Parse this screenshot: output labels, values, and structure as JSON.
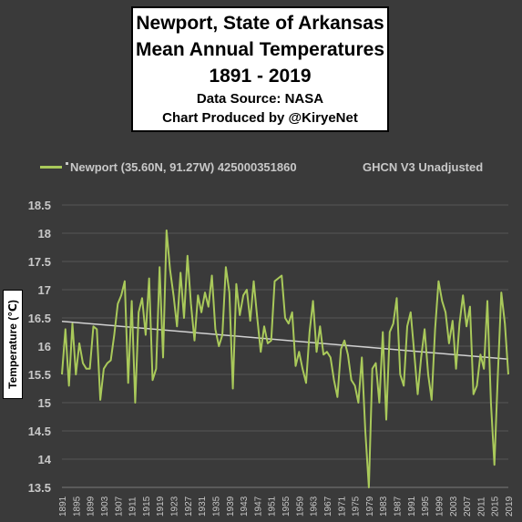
{
  "title": {
    "line1": "Newport, State of Arkansas",
    "line2": "Mean Annual Temperatures",
    "line3": "1891 - 2019",
    "line4": "Data Source: NASA",
    "line5": "Chart Produced by @KiryeNet"
  },
  "legend": {
    "series_label": "Newport (35.60N, 91.27W) 425000351860",
    "note": "GHCN V3 Unadjusted"
  },
  "colors": {
    "background": "#3a3a3a",
    "series": "#a9c95a",
    "trend": "#d2d2d2",
    "grid": "#555555",
    "text": "#c8c8c8"
  },
  "chart_data": {
    "type": "line",
    "xlabel": "",
    "ylabel": "Temperature (℃)",
    "ylim": [
      13.5,
      18.5
    ],
    "y_ticks": [
      "13.5",
      "14",
      "14.5",
      "15",
      "15.5",
      "16",
      "16.5",
      "17",
      "17.5",
      "18",
      "18.5"
    ],
    "x_ticks": [
      "1891",
      "1895",
      "1899",
      "1903",
      "1907",
      "1911",
      "1915",
      "1919",
      "1923",
      "1927",
      "1931",
      "1935",
      "1939",
      "1943",
      "1947",
      "1951",
      "1955",
      "1959",
      "1963",
      "1967",
      "1971",
      "1975",
      "1979",
      "1983",
      "1987",
      "1991",
      "1995",
      "1999",
      "2003",
      "2007",
      "2011",
      "2015",
      "2019"
    ],
    "grid": "horizontal",
    "x": [
      1891,
      1892,
      1893,
      1894,
      1895,
      1896,
      1897,
      1898,
      1899,
      1900,
      1901,
      1902,
      1903,
      1904,
      1905,
      1906,
      1907,
      1908,
      1909,
      1910,
      1911,
      1912,
      1913,
      1914,
      1915,
      1916,
      1917,
      1918,
      1919,
      1920,
      1921,
      1922,
      1923,
      1924,
      1925,
      1926,
      1927,
      1928,
      1929,
      1930,
      1931,
      1932,
      1933,
      1934,
      1935,
      1936,
      1937,
      1938,
      1939,
      1940,
      1941,
      1942,
      1943,
      1944,
      1945,
      1946,
      1947,
      1948,
      1949,
      1950,
      1951,
      1952,
      1953,
      1954,
      1955,
      1956,
      1957,
      1958,
      1959,
      1960,
      1961,
      1962,
      1963,
      1964,
      1965,
      1966,
      1967,
      1968,
      1969,
      1970,
      1971,
      1972,
      1973,
      1974,
      1975,
      1976,
      1977,
      1978,
      1979,
      1980,
      1981,
      1982,
      1983,
      1984,
      1985,
      1986,
      1987,
      1988,
      1989,
      1990,
      1991,
      1992,
      1993,
      1994,
      1995,
      1996,
      1997,
      1998,
      1999,
      2000,
      2001,
      2002,
      2003,
      2004,
      2005,
      2006,
      2007,
      2008,
      2009,
      2010,
      2011,
      2012,
      2013,
      2014,
      2015,
      2016,
      2017,
      2018,
      2019
    ],
    "series": [
      {
        "name": "Newport (35.60N, 91.27W) 425000351860",
        "values": [
          15.5,
          16.3,
          15.3,
          16.4,
          15.5,
          16.05,
          15.7,
          15.6,
          15.6,
          16.35,
          16.3,
          15.05,
          15.6,
          15.7,
          15.75,
          16.2,
          16.75,
          16.9,
          17.15,
          15.35,
          16.8,
          15.0,
          16.6,
          16.85,
          16.2,
          17.2,
          15.4,
          15.6,
          17.4,
          15.8,
          18.05,
          17.35,
          16.9,
          16.35,
          17.3,
          16.5,
          17.6,
          16.75,
          16.1,
          16.9,
          16.6,
          16.95,
          16.7,
          17.25,
          16.3,
          16.0,
          16.2,
          17.4,
          16.95,
          15.25,
          17.1,
          16.55,
          16.9,
          17.0,
          16.45,
          17.15,
          16.5,
          15.9,
          16.35,
          16.05,
          16.1,
          17.15,
          17.2,
          17.25,
          16.5,
          16.4,
          16.6,
          15.65,
          15.9,
          15.6,
          15.35,
          16.25,
          16.8,
          15.9,
          16.35,
          15.85,
          15.9,
          15.8,
          15.4,
          15.1,
          15.95,
          16.1,
          15.85,
          15.4,
          15.3,
          15.0,
          15.8,
          14.5,
          13.5,
          15.6,
          15.7,
          15.0,
          16.25,
          14.7,
          16.25,
          16.4,
          16.85,
          15.5,
          15.3,
          16.35,
          16.6,
          15.9,
          15.15,
          15.8,
          16.3,
          15.5,
          15.05,
          16.3,
          17.15,
          16.8,
          16.6,
          16.05,
          16.45,
          15.6,
          16.4,
          16.9,
          16.35,
          16.7,
          15.15,
          15.3,
          15.85,
          15.6,
          16.8,
          15.0,
          13.9,
          15.5,
          16.95,
          16.4,
          15.5
        ]
      }
    ],
    "trend": {
      "start": 16.44,
      "end": 15.77
    }
  }
}
